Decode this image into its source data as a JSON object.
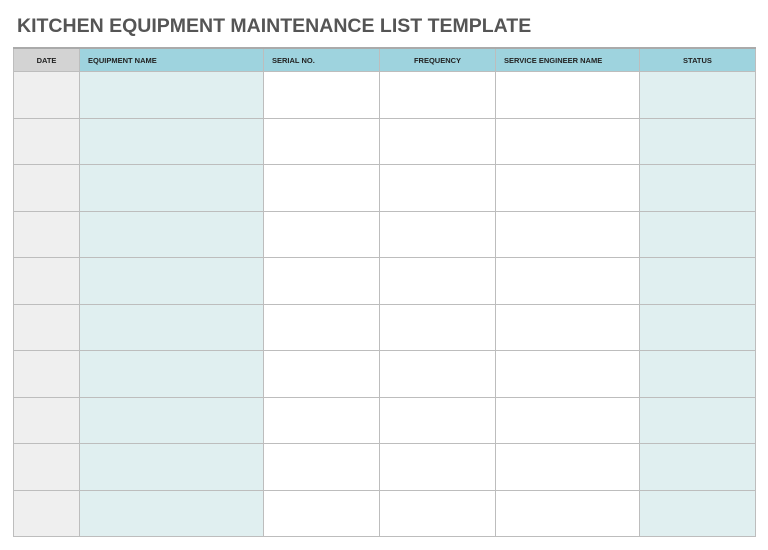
{
  "title": "KITCHEN EQUIPMENT MAINTENANCE LIST TEMPLATE",
  "table": {
    "columns": [
      {
        "label": "DATE",
        "key": "date",
        "align": "center",
        "fill": "#efefef",
        "header_fill": "#d3d3d3"
      },
      {
        "label": "EQUIPMENT NAME",
        "key": "equipment_name",
        "align": "left",
        "fill": "#e0eff0",
        "header_fill": "#9ed3de"
      },
      {
        "label": "SERIAL NO.",
        "key": "serial_no",
        "align": "left",
        "fill": "#ffffff",
        "header_fill": "#9ed3de"
      },
      {
        "label": "FREQUENCY",
        "key": "frequency",
        "align": "center",
        "fill": "#ffffff",
        "header_fill": "#9ed3de"
      },
      {
        "label": "SERVICE ENGINEER NAME",
        "key": "service_engineer_name",
        "align": "left",
        "fill": "#ffffff",
        "header_fill": "#9ed3de"
      },
      {
        "label": "STATUS",
        "key": "status",
        "align": "center",
        "fill": "#e0eff0",
        "header_fill": "#9ed3de"
      }
    ],
    "rows": [
      [
        "",
        "",
        "",
        "",
        "",
        ""
      ],
      [
        "",
        "",
        "",
        "",
        "",
        ""
      ],
      [
        "",
        "",
        "",
        "",
        "",
        ""
      ],
      [
        "",
        "",
        "",
        "",
        "",
        ""
      ],
      [
        "",
        "",
        "",
        "",
        "",
        ""
      ],
      [
        "",
        "",
        "",
        "",
        "",
        ""
      ],
      [
        "",
        "",
        "",
        "",
        "",
        ""
      ],
      [
        "",
        "",
        "",
        "",
        "",
        ""
      ],
      [
        "",
        "",
        "",
        "",
        "",
        ""
      ],
      [
        "",
        "",
        "",
        "",
        "",
        ""
      ]
    ]
  }
}
